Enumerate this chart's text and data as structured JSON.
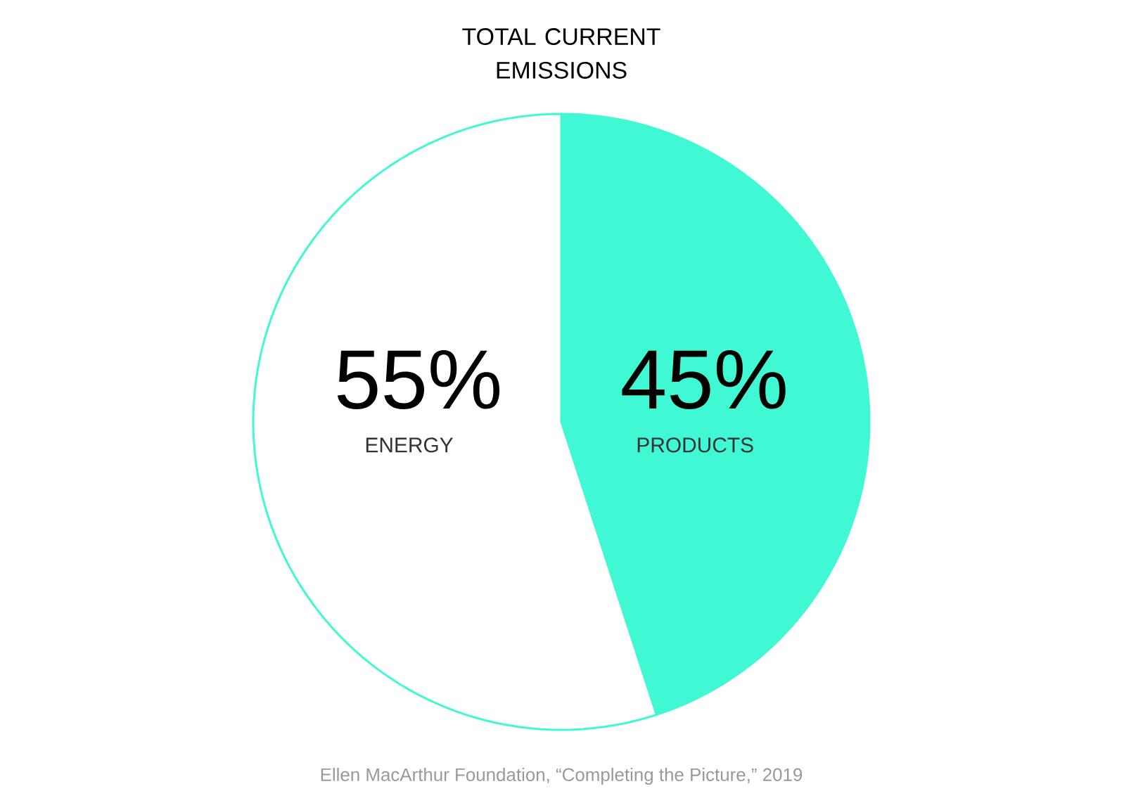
{
  "chart_data": {
    "type": "pie",
    "title": "TOTAL CURRENT EMISSIONS",
    "categories": [
      "PRODUCTS",
      "ENERGY"
    ],
    "values": [
      45,
      55
    ],
    "colors": [
      "#40f8d4",
      "#ffffff"
    ],
    "value_labels": [
      "45%",
      "55%"
    ],
    "annotations": [
      "Ellen MacArthur Foundation, “Completing the Picture,” 2019"
    ]
  }
}
